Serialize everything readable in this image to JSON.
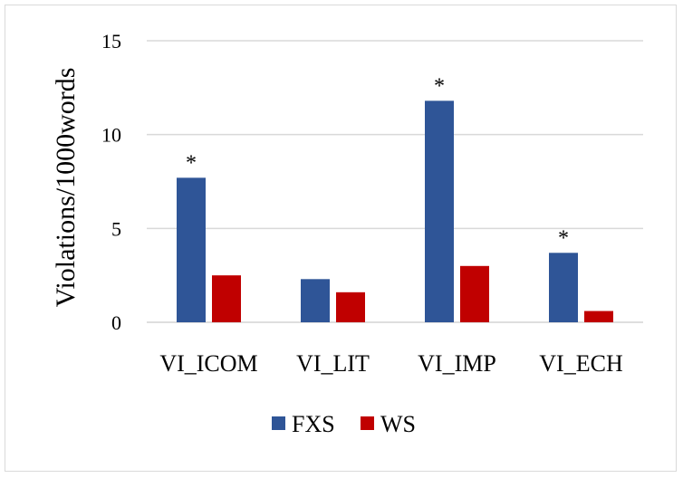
{
  "chart_data": {
    "type": "bar",
    "categories": [
      "VI_ICOM",
      "VI_LIT",
      "VI_IMP",
      "VI_ECH"
    ],
    "series": [
      {
        "name": "FXS",
        "color": "#2F5597",
        "values": [
          7.7,
          2.3,
          11.8,
          3.7
        ]
      },
      {
        "name": "WS",
        "color": "#C00000",
        "values": [
          2.5,
          1.6,
          3.0,
          0.6
        ]
      }
    ],
    "significance": [
      "*",
      "",
      "*",
      "*"
    ],
    "ylabel": "Violations/1000words",
    "xlabel": "",
    "ylim": [
      0,
      15
    ],
    "yticks": [
      "0",
      "5",
      "10",
      "15"
    ],
    "ytick_values": [
      0,
      5,
      10,
      15
    ],
    "grid": true,
    "legend_position": "bottom"
  }
}
